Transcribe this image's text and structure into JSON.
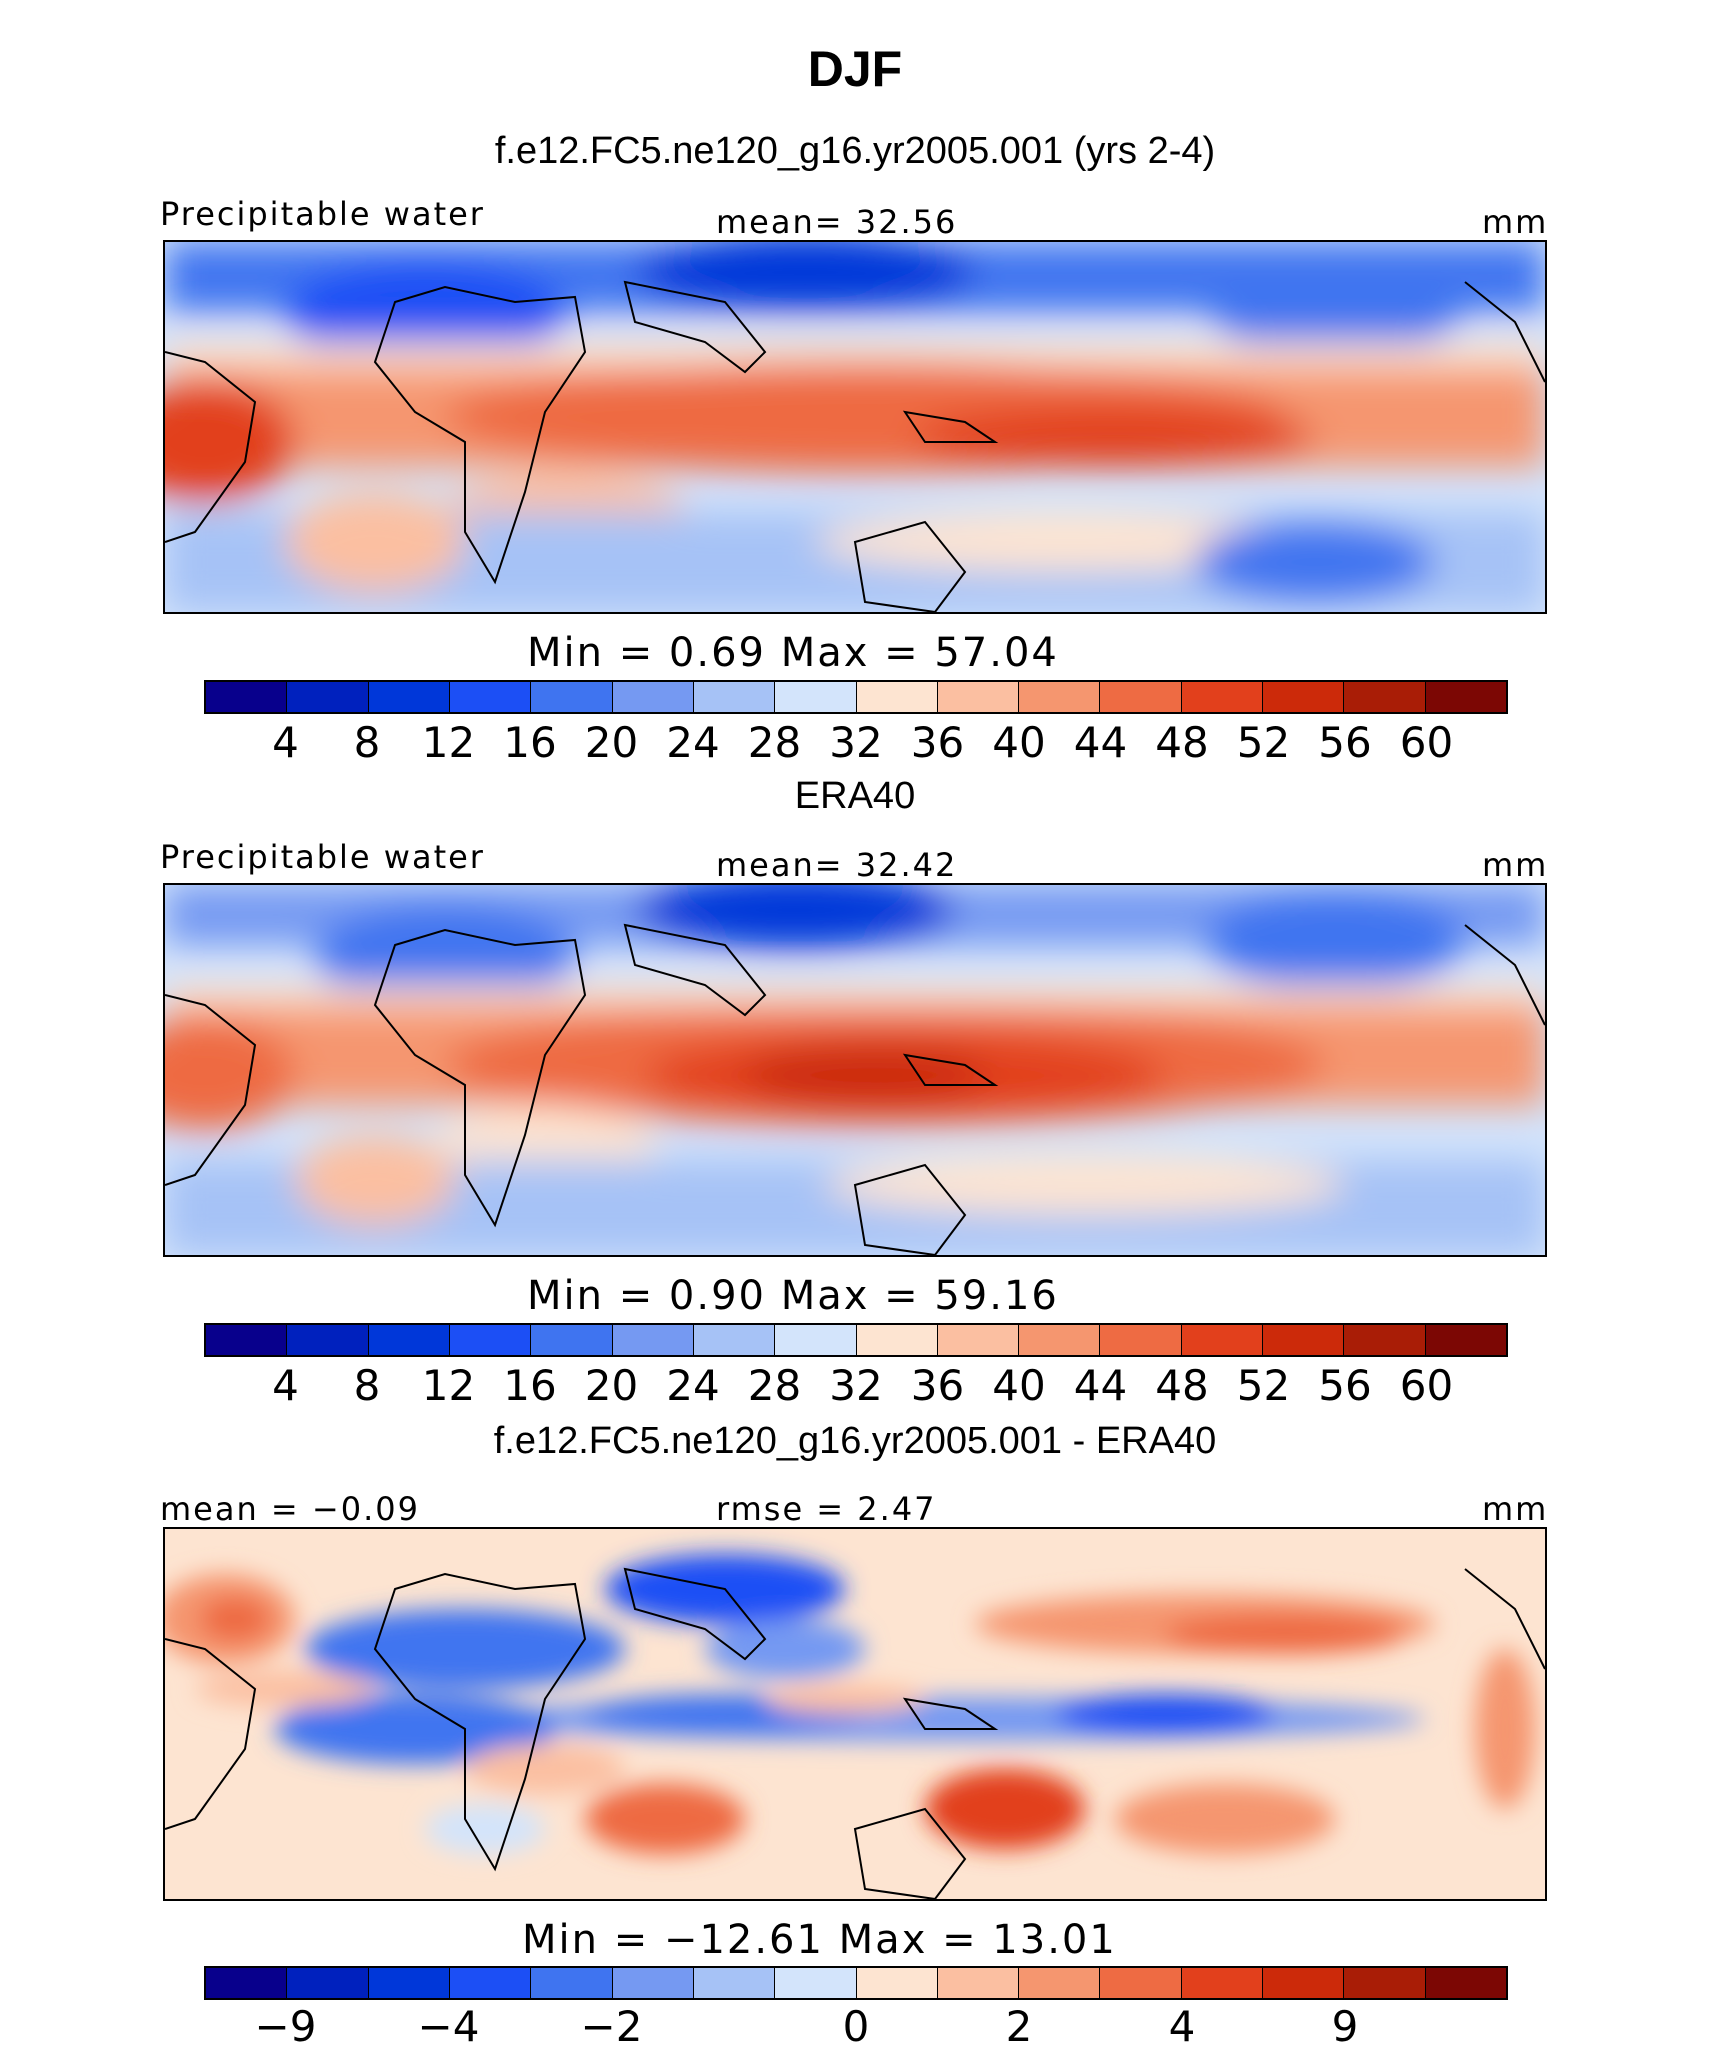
{
  "figure": {
    "season": "DJF",
    "units": "mm"
  },
  "panels": [
    {
      "id": "model",
      "title": "f.e12.FC5.ne120_g16.yr2005.001 (yrs 2-4)",
      "left_label": "Precipitable water",
      "center_label": "mean=   32.56",
      "right_label": "mm",
      "minmax": "Min =    0.69  Max =   57.04"
    },
    {
      "id": "obs",
      "title": "ERA40",
      "left_label": "Precipitable water",
      "center_label": "mean=   32.42",
      "right_label": "mm",
      "minmax": "Min =    0.90  Max =   59.16"
    },
    {
      "id": "diff",
      "title": "f.e12.FC5.ne120_g16.yr2005.001 - ERA40",
      "left_label": "mean =  −0.09",
      "center_label": "rmse =    2.47",
      "right_label": "mm",
      "minmax": "Min = −12.61  Max =   13.01"
    }
  ],
  "chart_data": [
    {
      "type": "heatmap",
      "title": "f.e12.FC5.ne120_g16.yr2005.001 (yrs 2-4)",
      "variable": "Precipitable water",
      "units": "mm",
      "mean": 32.56,
      "min": 0.69,
      "max": 57.04,
      "levels": [
        "4",
        "8",
        "12",
        "16",
        "20",
        "24",
        "28",
        "32",
        "36",
        "40",
        "44",
        "48",
        "52",
        "56",
        "60"
      ],
      "colors": [
        "#08008c",
        "#0021be",
        "#0037d9",
        "#1c4ff5",
        "#3f74f0",
        "#7599f2",
        "#a6c2f6",
        "#d3e4fb",
        "#fde4d1",
        "#fbbfa1",
        "#f5966f",
        "#ee6b43",
        "#e2401c",
        "#cc2a0a",
        "#a91d06",
        "#7c0704"
      ]
    },
    {
      "type": "heatmap",
      "title": "ERA40",
      "variable": "Precipitable water",
      "units": "mm",
      "mean": 32.42,
      "min": 0.9,
      "max": 59.16,
      "levels": [
        "4",
        "8",
        "12",
        "16",
        "20",
        "24",
        "28",
        "32",
        "36",
        "40",
        "44",
        "48",
        "52",
        "56",
        "60"
      ],
      "colors": [
        "#08008c",
        "#0021be",
        "#0037d9",
        "#1c4ff5",
        "#3f74f0",
        "#7599f2",
        "#a6c2f6",
        "#d3e4fb",
        "#fde4d1",
        "#fbbfa1",
        "#f5966f",
        "#ee6b43",
        "#e2401c",
        "#cc2a0a",
        "#a91d06",
        "#7c0704"
      ]
    },
    {
      "type": "heatmap",
      "title": "f.e12.FC5.ne120_g16.yr2005.001 - ERA40",
      "units": "mm",
      "mean": -0.09,
      "rmse": 2.47,
      "min": -12.61,
      "max": 13.01,
      "levels": [
        "−9",
        "−4",
        "−2",
        "0",
        "2",
        "4",
        "9"
      ],
      "level_positions": [
        1,
        3,
        5,
        8,
        10,
        12,
        14
      ],
      "colors": [
        "#08008c",
        "#0021be",
        "#0037d9",
        "#1c4ff5",
        "#3f74f0",
        "#7599f2",
        "#a6c2f6",
        "#d3e4fb",
        "#fde4d1",
        "#fbbfa1",
        "#f5966f",
        "#ee6b43",
        "#e2401c",
        "#cc2a0a",
        "#a91d06",
        "#7c0704"
      ]
    }
  ]
}
